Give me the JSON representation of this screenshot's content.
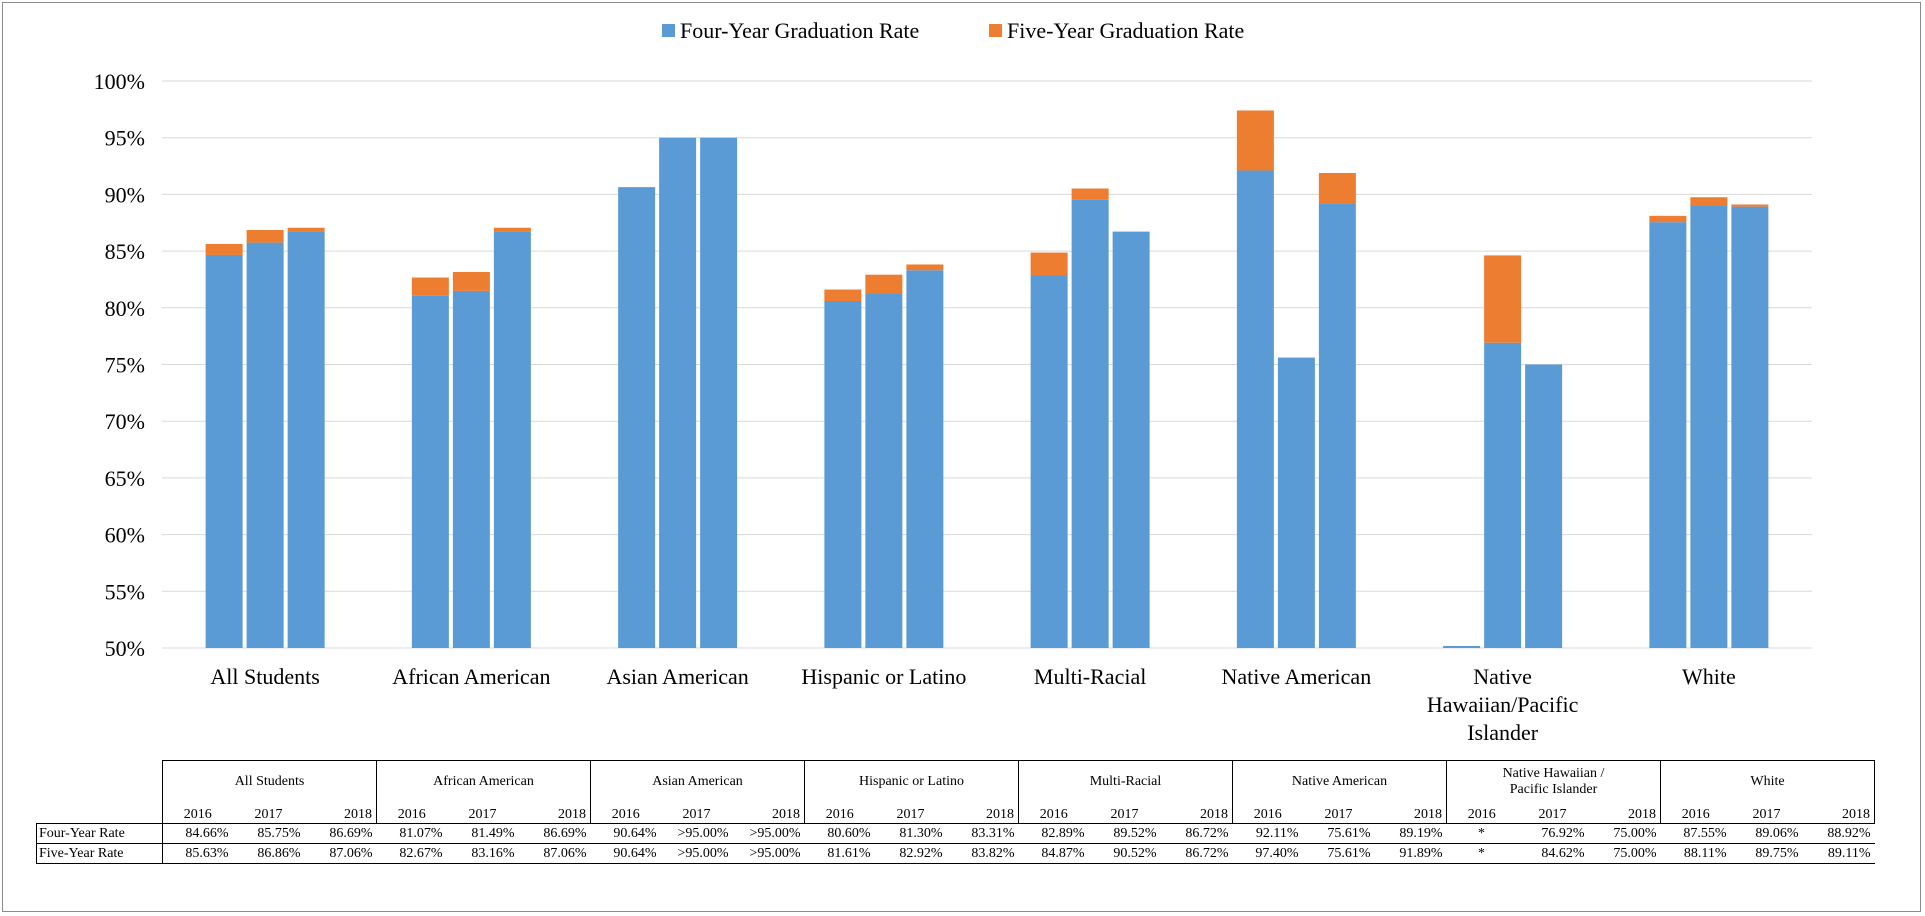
{
  "chart_data": {
    "type": "bar",
    "stacked": true,
    "title": "",
    "xlabel": "",
    "ylabel": "",
    "ylim": [
      50,
      100
    ],
    "yticks": [
      "50%",
      "55%",
      "60%",
      "65%",
      "70%",
      "75%",
      "80%",
      "85%",
      "90%",
      "95%",
      "100%"
    ],
    "grid": true,
    "legend_position": "top-center",
    "categories": [
      "All Students",
      "African American",
      "Asian American",
      "Hispanic or Latino",
      "Multi-Racial",
      "Native American",
      "Native Hawaiian/Pacific Islander",
      "White"
    ],
    "years": [
      "2016",
      "2017",
      "2018"
    ],
    "series": [
      {
        "name": "Four-Year Graduation Rate",
        "color": "#5b9bd5",
        "values": [
          [
            84.66,
            85.75,
            86.69
          ],
          [
            81.07,
            81.49,
            86.69
          ],
          [
            90.64,
            95.0,
            95.0
          ],
          [
            80.6,
            81.3,
            83.31
          ],
          [
            82.89,
            89.52,
            86.72
          ],
          [
            92.11,
            75.61,
            89.19
          ],
          [
            null,
            76.92,
            75.0
          ],
          [
            87.55,
            89.06,
            88.92
          ]
        ]
      },
      {
        "name": "Five-Year Graduation Rate",
        "color": "#ed7d31",
        "values": [
          [
            85.63,
            86.86,
            87.06
          ],
          [
            82.67,
            83.16,
            87.06
          ],
          [
            90.64,
            95.0,
            95.0
          ],
          [
            81.61,
            82.92,
            83.82
          ],
          [
            84.87,
            90.52,
            86.72
          ],
          [
            97.4,
            75.61,
            91.89
          ],
          [
            null,
            84.62,
            75.0
          ],
          [
            88.11,
            89.75,
            89.11
          ]
        ]
      }
    ]
  },
  "table": {
    "groups": [
      "All Students",
      "African American",
      "Asian American",
      "Hispanic or Latino",
      "Multi-Racial",
      "Native American",
      "Native Hawaiian / Pacific Islander",
      "White"
    ],
    "years": [
      "2016",
      "2017",
      "2018"
    ],
    "rows": [
      {
        "label": "Four-Year Rate",
        "cells": [
          "84.66%",
          "85.75%",
          "86.69%",
          "81.07%",
          "81.49%",
          "86.69%",
          "90.64%",
          ">95.00%",
          ">95.00%",
          "80.60%",
          "81.30%",
          "83.31%",
          "82.89%",
          "89.52%",
          "86.72%",
          "92.11%",
          "75.61%",
          "89.19%",
          "*",
          "76.92%",
          "75.00%",
          "87.55%",
          "89.06%",
          "88.92%"
        ]
      },
      {
        "label": "Five-Year Rate",
        "cells": [
          "85.63%",
          "86.86%",
          "87.06%",
          "82.67%",
          "83.16%",
          "87.06%",
          "90.64%",
          ">95.00%",
          ">95.00%",
          "81.61%",
          "82.92%",
          "83.82%",
          "84.87%",
          "90.52%",
          "86.72%",
          "97.40%",
          "75.61%",
          "91.89%",
          "*",
          "84.62%",
          "75.00%",
          "88.11%",
          "89.75%",
          "89.11%"
        ]
      }
    ]
  }
}
